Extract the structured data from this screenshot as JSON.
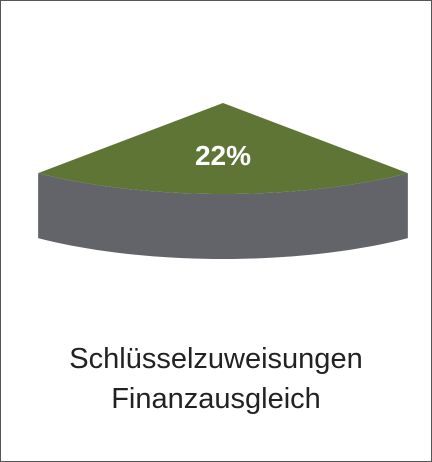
{
  "chart_data": {
    "type": "pie",
    "categories": [
      "Schlüsselzuweisungen Finanzausgleich"
    ],
    "values": [
      22
    ],
    "value_labels": [
      "22%"
    ],
    "color": "#5f7535",
    "side_color": "#626469"
  }
}
